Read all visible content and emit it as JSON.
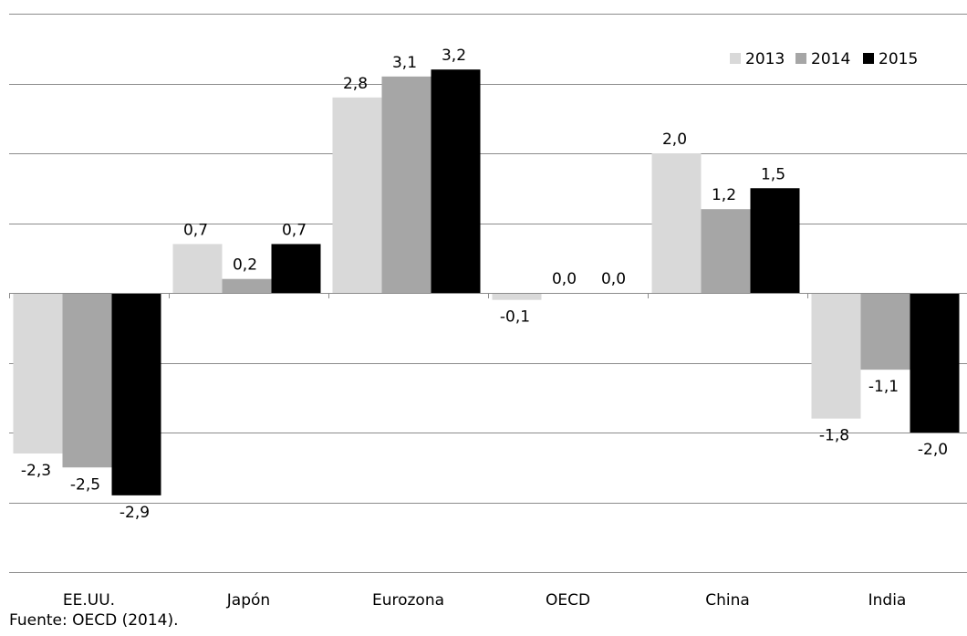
{
  "chart_data": {
    "type": "bar",
    "categories": [
      "EE.UU.",
      "Japón",
      "Eurozona",
      "OECD",
      "China",
      "India"
    ],
    "series": [
      {
        "name": "2013",
        "color": "#d9d9d9",
        "values": [
          -2.3,
          0.7,
          2.8,
          -0.1,
          2.0,
          -1.8
        ],
        "labels": [
          "-2,3",
          "0,7",
          "2,8",
          "-0,1",
          "2,0",
          "-1,8"
        ]
      },
      {
        "name": "2014",
        "color": "#a6a6a6",
        "values": [
          -2.5,
          0.2,
          3.1,
          0.0,
          1.2,
          -1.1
        ],
        "labels": [
          "-2,5",
          "0,2",
          "3,1",
          "0,0",
          "1,2",
          "-1,1"
        ]
      },
      {
        "name": "2015",
        "color": "#000000",
        "values": [
          -2.9,
          0.7,
          3.2,
          0.0,
          1.5,
          -2.0
        ],
        "labels": [
          "-2,9",
          "0,7",
          "3,2",
          "0,0",
          "1,5",
          "-2,0"
        ]
      }
    ],
    "ylim": [
      -4,
      4
    ],
    "grid": true,
    "legend_position": "top-right",
    "source_note": "Fuente: OECD (2014)."
  }
}
